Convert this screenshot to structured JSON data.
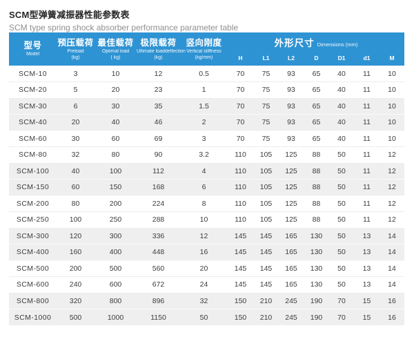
{
  "page": {
    "title_zh": "SCM型弹簧减振器性能参数表",
    "title_en": "SCM type spring shock absorber performance parameter table"
  },
  "colors": {
    "header_blue": "#2E93D3",
    "row_alt": "#EFEFEF",
    "header_text": "#FFFFFF",
    "body_text": "#3C3C3C"
  },
  "table": {
    "columns": [
      {
        "zh": "型号",
        "en": "Model",
        "unit": ""
      },
      {
        "zh": "预压载荷",
        "en": "Preload",
        "unit": "(kg)"
      },
      {
        "zh": "最佳载荷",
        "en": "Optimal load",
        "unit": "( kg)"
      },
      {
        "zh": "极限载荷",
        "en": "Ultimate loaddeflection",
        "unit": "(kg)"
      },
      {
        "zh": "竖向刚度",
        "en": "Vertical stiffness",
        "unit": "(kg/mm)"
      }
    ],
    "dims_group": {
      "zh": "外形尺寸",
      "en": "Dimensions (mm)",
      "sub": [
        "H",
        "L1",
        "L2",
        "D",
        "D1",
        "d1",
        "M"
      ]
    },
    "rows": [
      [
        "SCM-10",
        "3",
        "10",
        "12",
        "0.5",
        "70",
        "75",
        "93",
        "65",
        "40",
        "11",
        "10"
      ],
      [
        "SCM-20",
        "5",
        "20",
        "23",
        "1",
        "70",
        "75",
        "93",
        "65",
        "40",
        "11",
        "10"
      ],
      [
        "SCM-30",
        "6",
        "30",
        "35",
        "1.5",
        "70",
        "75",
        "93",
        "65",
        "40",
        "11",
        "10"
      ],
      [
        "SCM-40",
        "20",
        "40",
        "46",
        "2",
        "70",
        "75",
        "93",
        "65",
        "40",
        "11",
        "10"
      ],
      [
        "SCM-60",
        "30",
        "60",
        "69",
        "3",
        "70",
        "75",
        "93",
        "65",
        "40",
        "11",
        "10"
      ],
      [
        "SCM-80",
        "32",
        "80",
        "90",
        "3.2",
        "110",
        "105",
        "125",
        "88",
        "50",
        "11",
        "12"
      ],
      [
        "SCM-100",
        "40",
        "100",
        "112",
        "4",
        "110",
        "105",
        "125",
        "88",
        "50",
        "11",
        "12"
      ],
      [
        "SCM-150",
        "60",
        "150",
        "168",
        "6",
        "110",
        "105",
        "125",
        "88",
        "50",
        "11",
        "12"
      ],
      [
        "SCM-200",
        "80",
        "200",
        "224",
        "8",
        "110",
        "105",
        "125",
        "88",
        "50",
        "11",
        "12"
      ],
      [
        "SCM-250",
        "100",
        "250",
        "288",
        "10",
        "110",
        "105",
        "125",
        "88",
        "50",
        "11",
        "12"
      ],
      [
        "SCM-300",
        "120",
        "300",
        "336",
        "12",
        "145",
        "145",
        "165",
        "130",
        "50",
        "13",
        "14"
      ],
      [
        "SCM-400",
        "160",
        "400",
        "448",
        "16",
        "145",
        "145",
        "165",
        "130",
        "50",
        "13",
        "14"
      ],
      [
        "SCM-500",
        "200",
        "500",
        "560",
        "20",
        "145",
        "145",
        "165",
        "130",
        "50",
        "13",
        "14"
      ],
      [
        "SCM-600",
        "240",
        "600",
        "672",
        "24",
        "145",
        "145",
        "165",
        "130",
        "50",
        "13",
        "14"
      ],
      [
        "SCM-800",
        "320",
        "800",
        "896",
        "32",
        "150",
        "210",
        "245",
        "190",
        "70",
        "15",
        "16"
      ],
      [
        "SCM-1000",
        "500",
        "1000",
        "1150",
        "50",
        "150",
        "210",
        "245",
        "190",
        "70",
        "15",
        "16"
      ]
    ]
  }
}
